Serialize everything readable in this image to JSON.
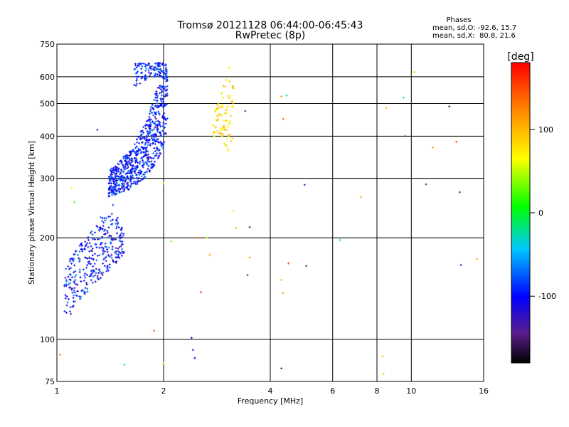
{
  "chart_data": {
    "type": "scatter",
    "title": "Tromsø 20121128 06:44:00-06:45:43",
    "subtitle": "RwPretec (8p)",
    "xlabel": "Frequency [MHz]",
    "ylabel": "Stationary phase Virtual Height [km]",
    "x_scale": "log",
    "y_scale": "log",
    "xlim": [
      1,
      16
    ],
    "ylim": [
      75,
      750
    ],
    "x_ticks": [
      1,
      2,
      4,
      6,
      8,
      10,
      16
    ],
    "x_tick_labels": [
      "1",
      "2",
      "4",
      "6",
      "8",
      "10",
      "16"
    ],
    "y_ticks": [
      75,
      100,
      200,
      300,
      400,
      500,
      600,
      750
    ],
    "y_tick_labels": [
      "75",
      "100",
      "200",
      "300",
      "400",
      "500",
      "600",
      "750"
    ],
    "grid": true,
    "phase_box": {
      "title": "Phases",
      "line1": "mean, sd,O: -92.6, 15.7",
      "line2": "mean, sd,X:  80.8, 21.6"
    },
    "colorbar": {
      "unit": "[deg]",
      "range": [
        -180,
        180
      ],
      "ticks": [
        100,
        0,
        -100
      ],
      "tick_labels": [
        "100",
        "0",
        "-100"
      ]
    },
    "o_trace_upper": {
      "x": [
        1.4,
        1.5,
        1.6,
        1.7,
        1.8,
        1.9,
        2.0,
        2.05
      ],
      "y_low": [
        265,
        270,
        278,
        290,
        305,
        330,
        370,
        420
      ],
      "y_high": [
        315,
        340,
        360,
        400,
        460,
        540,
        620,
        650
      ],
      "phase": -95
    },
    "o_trace_upper_top": {
      "x": [
        1.65,
        1.75,
        1.85,
        1.95,
        2.05
      ],
      "y_low": [
        560,
        580,
        600,
        600,
        590
      ],
      "y_high": [
        660,
        660,
        660,
        660,
        660
      ],
      "phase": -95
    },
    "o_trace_lower": {
      "x": [
        1.05,
        1.15,
        1.25,
        1.35,
        1.45,
        1.55
      ],
      "y_low": [
        110,
        125,
        140,
        155,
        165,
        175
      ],
      "y_high": [
        165,
        190,
        210,
        230,
        240,
        210
      ],
      "phase": -100
    },
    "x_trace": {
      "x": [
        2.75,
        2.85,
        2.95,
        3.05,
        3.15
      ],
      "y_low": [
        380,
        400,
        380,
        360,
        390
      ],
      "y_high": [
        470,
        500,
        560,
        650,
        600
      ],
      "phase": 80
    },
    "scattered_points": [
      {
        "x": 1.02,
        "y": 90,
        "phase": 130
      },
      {
        "x": 1.1,
        "y": 280,
        "phase": 60
      },
      {
        "x": 1.12,
        "y": 255,
        "phase": 20
      },
      {
        "x": 1.3,
        "y": 418,
        "phase": -130
      },
      {
        "x": 1.33,
        "y": 230,
        "phase": -70
      },
      {
        "x": 1.44,
        "y": 250,
        "phase": -80
      },
      {
        "x": 1.55,
        "y": 84,
        "phase": -20
      },
      {
        "x": 1.88,
        "y": 106,
        "phase": 140
      },
      {
        "x": 2.0,
        "y": 85,
        "phase": 40
      },
      {
        "x": 2.0,
        "y": 290,
        "phase": 100
      },
      {
        "x": 2.1,
        "y": 195,
        "phase": 30
      },
      {
        "x": 2.4,
        "y": 101,
        "phase": -110
      },
      {
        "x": 2.42,
        "y": 93,
        "phase": -100
      },
      {
        "x": 2.45,
        "y": 88,
        "phase": -100
      },
      {
        "x": 2.5,
        "y": 200,
        "phase": 150
      },
      {
        "x": 2.55,
        "y": 138,
        "phase": 160
      },
      {
        "x": 2.65,
        "y": 200,
        "phase": 50
      },
      {
        "x": 2.7,
        "y": 178,
        "phase": 110
      },
      {
        "x": 3.15,
        "y": 240,
        "phase": 50
      },
      {
        "x": 3.2,
        "y": 214,
        "phase": 100
      },
      {
        "x": 3.4,
        "y": 475,
        "phase": -140
      },
      {
        "x": 3.45,
        "y": 155,
        "phase": -140
      },
      {
        "x": 3.5,
        "y": 215,
        "phase": -150
      },
      {
        "x": 3.5,
        "y": 175,
        "phase": 110
      },
      {
        "x": 4.3,
        "y": 525,
        "phase": 110
      },
      {
        "x": 4.35,
        "y": 450,
        "phase": 140
      },
      {
        "x": 4.3,
        "y": 150,
        "phase": 100
      },
      {
        "x": 4.35,
        "y": 137,
        "phase": 110
      },
      {
        "x": 4.3,
        "y": 82,
        "phase": -140
      },
      {
        "x": 4.45,
        "y": 528,
        "phase": -20
      },
      {
        "x": 4.5,
        "y": 168,
        "phase": 150
      },
      {
        "x": 5.0,
        "y": 287,
        "phase": -130
      },
      {
        "x": 5.05,
        "y": 165,
        "phase": -150
      },
      {
        "x": 6.3,
        "y": 197,
        "phase": -30
      },
      {
        "x": 7.2,
        "y": 264,
        "phase": 110
      },
      {
        "x": 8.3,
        "y": 89,
        "phase": 100
      },
      {
        "x": 8.35,
        "y": 79,
        "phase": 100
      },
      {
        "x": 8.5,
        "y": 485,
        "phase": 100
      },
      {
        "x": 9.5,
        "y": 520,
        "phase": -40
      },
      {
        "x": 9.6,
        "y": 400,
        "phase": -140
      },
      {
        "x": 10.2,
        "y": 620,
        "phase": 100
      },
      {
        "x": 11.0,
        "y": 288,
        "phase": -140
      },
      {
        "x": 11.5,
        "y": 370,
        "phase": 110
      },
      {
        "x": 12.8,
        "y": 490,
        "phase": -150
      },
      {
        "x": 13.4,
        "y": 385,
        "phase": 150
      },
      {
        "x": 13.7,
        "y": 273,
        "phase": -140
      },
      {
        "x": 13.8,
        "y": 166,
        "phase": -130
      },
      {
        "x": 15.3,
        "y": 173,
        "phase": 110
      }
    ]
  }
}
